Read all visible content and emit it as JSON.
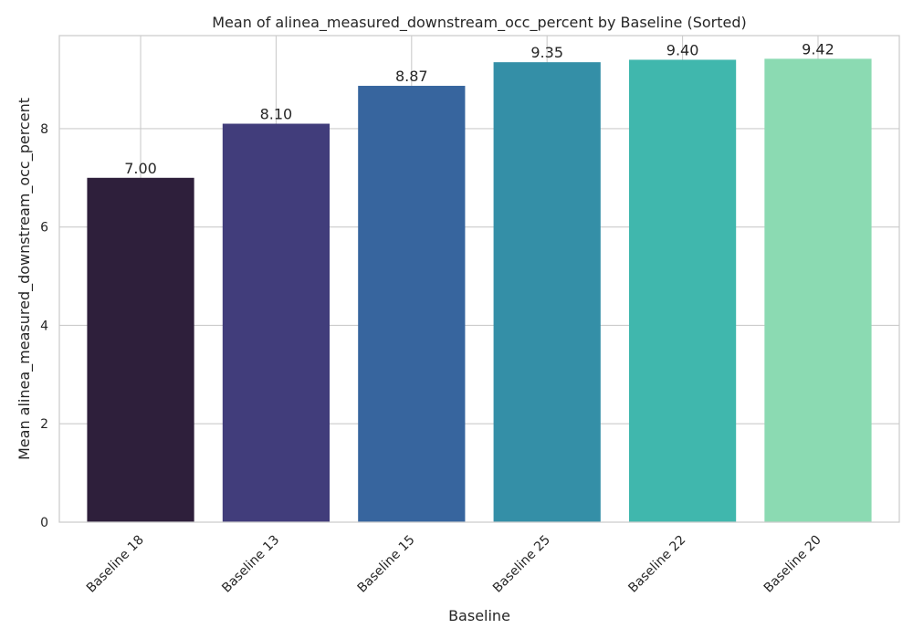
{
  "chart_data": {
    "type": "bar",
    "title": "Mean of alinea_measured_downstream_occ_percent by Baseline (Sorted)",
    "xlabel": "Baseline",
    "ylabel": "Mean alinea_measured_downstream_occ_percent",
    "categories": [
      "Baseline 18",
      "Baseline 13",
      "Baseline 15",
      "Baseline 25",
      "Baseline 22",
      "Baseline 20"
    ],
    "values": [
      7.0,
      8.1,
      8.87,
      9.35,
      9.4,
      9.42
    ],
    "value_labels": [
      "7.00",
      "8.10",
      "8.87",
      "9.35",
      "9.40",
      "9.42"
    ],
    "colors": [
      "#2e1f3b",
      "#413d7b",
      "#37659e",
      "#348fa7",
      "#40b7ad",
      "#8bdab2"
    ],
    "ylim": [
      0,
      9.891
    ],
    "yticks": [
      0,
      2,
      4,
      6,
      8
    ],
    "grid": true,
    "legend": "none"
  }
}
